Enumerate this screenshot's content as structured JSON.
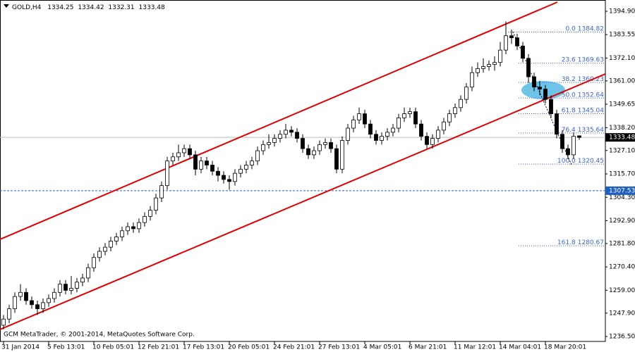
{
  "chart_data": {
    "type": "candlestick",
    "symbol": "GOLD,H4",
    "categories": [
      "31 Jan 2014",
      null,
      null,
      null,
      null,
      null,
      null,
      null,
      "5 Feb 13:01",
      null,
      null,
      null,
      null,
      null,
      null,
      null,
      "10 Feb 05:01",
      null,
      null,
      null,
      null,
      null,
      null,
      null,
      "12 Feb 21:01",
      null,
      null,
      null,
      null,
      null,
      null,
      null,
      "17 Feb 13:01",
      null,
      null,
      null,
      null,
      null,
      null,
      null,
      "20 Feb 05:01",
      null,
      null,
      null,
      null,
      null,
      null,
      null,
      "24 Feb 21:01",
      null,
      null,
      null,
      null,
      null,
      null,
      null,
      "27 Feb 13:01",
      null,
      null,
      null,
      null,
      null,
      null,
      null,
      "4 Mar 05:01",
      null,
      null,
      null,
      null,
      null,
      null,
      null,
      "6 Mar 21:01",
      null,
      null,
      null,
      null,
      null,
      null,
      null,
      "11 Mar 12:01",
      null,
      null,
      null,
      null,
      null,
      null,
      null,
      "14 Mar 04:01",
      null,
      null,
      null,
      null,
      null,
      null,
      null,
      "18 Mar 20:01",
      null,
      null,
      null,
      null,
      null,
      null
    ],
    "open": [
      1242,
      1245,
      1250,
      1256,
      1258,
      1254,
      1252,
      1250,
      1253,
      1255,
      1258,
      1262,
      1259,
      1260,
      1263,
      1265,
      1270,
      1275,
      1278,
      1280,
      1283,
      1285,
      1288,
      1290,
      1289,
      1292,
      1295,
      1298,
      1304,
      1310,
      1322,
      1324,
      1326,
      1328,
      1325,
      1318,
      1322,
      1320,
      1317,
      1315,
      1313,
      1312,
      1316,
      1318,
      1320,
      1322,
      1327,
      1330,
      1331,
      1333,
      1335,
      1337,
      1336,
      1333,
      1328,
      1325,
      1327,
      1330,
      1331,
      1328,
      1318,
      1332,
      1338,
      1342,
      1345,
      1340,
      1335,
      1332,
      1334,
      1336,
      1338,
      1343,
      1345,
      1346,
      1340,
      1334,
      1330,
      1333,
      1337,
      1341,
      1345,
      1348,
      1352,
      1358,
      1365,
      1367,
      1368,
      1369,
      1370,
      1376,
      1383,
      1382,
      1378,
      1372,
      1363,
      1358,
      1357,
      1352,
      1345,
      1335,
      1328,
      1325,
      1334.25
    ],
    "high": [
      1247,
      1252,
      1258,
      1262,
      1260,
      1256,
      1254,
      1255,
      1257,
      1260,
      1264,
      1264,
      1266,
      1265,
      1267,
      1272,
      1277,
      1280,
      1282,
      1285,
      1287,
      1290,
      1292,
      1292,
      1294,
      1297,
      1300,
      1306,
      1312,
      1324,
      1326,
      1330,
      1330,
      1330,
      1327,
      1324,
      1324,
      1322,
      1319,
      1317,
      1315,
      1318,
      1320,
      1322,
      1324,
      1329,
      1332,
      1335,
      1335,
      1337,
      1340,
      1339,
      1338,
      1335,
      1330,
      1329,
      1332,
      1333,
      1333,
      1330,
      1334,
      1340,
      1344,
      1348,
      1347,
      1342,
      1337,
      1336,
      1338,
      1340,
      1345,
      1348,
      1348,
      1348,
      1342,
      1336,
      1335,
      1339,
      1343,
      1347,
      1350,
      1354,
      1360,
      1368,
      1370,
      1372,
      1371,
      1373,
      1380,
      1390,
      1386,
      1384,
      1380,
      1374,
      1365,
      1361,
      1359,
      1354,
      1347,
      1337,
      1330,
      1336,
      1334.42
    ],
    "low": [
      1240,
      1243,
      1248,
      1254,
      1252,
      1250,
      1247,
      1248,
      1251,
      1253,
      1256,
      1257,
      1257,
      1258,
      1261,
      1263,
      1268,
      1273,
      1276,
      1278,
      1281,
      1283,
      1286,
      1287,
      1287,
      1290,
      1293,
      1296,
      1302,
      1308,
      1320,
      1322,
      1324,
      1323,
      1315,
      1316,
      1318,
      1315,
      1312,
      1311,
      1308,
      1310,
      1314,
      1316,
      1318,
      1320,
      1325,
      1328,
      1329,
      1331,
      1333,
      1334,
      1331,
      1326,
      1323,
      1323,
      1325,
      1328,
      1326,
      1316,
      1316,
      1330,
      1336,
      1340,
      1338,
      1333,
      1330,
      1330,
      1332,
      1334,
      1336,
      1341,
      1343,
      1338,
      1332,
      1328,
      1328,
      1331,
      1335,
      1339,
      1343,
      1346,
      1350,
      1356,
      1363,
      1365,
      1366,
      1366,
      1368,
      1374,
      1379,
      1376,
      1370,
      1360,
      1356,
      1354,
      1350,
      1343,
      1333,
      1326,
      1323,
      1323,
      1332.31
    ],
    "close": [
      1245,
      1250,
      1256,
      1258,
      1254,
      1252,
      1250,
      1253,
      1255,
      1258,
      1262,
      1259,
      1260,
      1263,
      1265,
      1270,
      1275,
      1278,
      1280,
      1283,
      1285,
      1288,
      1290,
      1289,
      1292,
      1295,
      1298,
      1304,
      1310,
      1322,
      1324,
      1326,
      1328,
      1325,
      1318,
      1322,
      1320,
      1317,
      1315,
      1313,
      1312,
      1316,
      1318,
      1320,
      1322,
      1327,
      1330,
      1331,
      1333,
      1335,
      1337,
      1336,
      1333,
      1328,
      1325,
      1327,
      1330,
      1331,
      1328,
      1318,
      1332,
      1338,
      1342,
      1345,
      1340,
      1335,
      1332,
      1334,
      1336,
      1338,
      1343,
      1345,
      1346,
      1340,
      1334,
      1330,
      1333,
      1337,
      1341,
      1345,
      1348,
      1352,
      1358,
      1365,
      1367,
      1368,
      1369,
      1370,
      1376,
      1383,
      1382,
      1378,
      1372,
      1363,
      1358,
      1357,
      1352,
      1345,
      1335,
      1328,
      1325,
      1334,
      1333.48
    ],
    "ylim": [
      1234.1,
      1400.4
    ],
    "yticks": [
      {
        "value": 1394.9,
        "label": "1394.90"
      },
      {
        "value": 1383.55,
        "label": "1383.55"
      },
      {
        "value": 1372.1,
        "label": "1372.10"
      },
      {
        "value": 1361,
        "label": "1361.00"
      },
      {
        "value": 1349.65,
        "label": "1349.65"
      },
      {
        "value": 1338.2,
        "label": "1338.20"
      },
      {
        "value": 1327.1,
        "label": "1327.10"
      },
      {
        "value": 1315.7,
        "label": "1315.70"
      },
      {
        "value": 1304.3,
        "label": "1304.30"
      },
      {
        "value": 1292.9,
        "label": "1292.90"
      },
      {
        "value": 1281.8,
        "label": "1281.80"
      },
      {
        "value": 1270.4,
        "label": "1270.40"
      },
      {
        "value": 1259,
        "label": "1259.00"
      },
      {
        "value": 1247.9,
        "label": "1247.90"
      },
      {
        "value": 1236.5,
        "label": "1236.50"
      }
    ],
    "fib_levels": [
      {
        "level": {
          "value": 0,
          "label": "0.0"
        },
        "price": 1384.82
      },
      {
        "level": 23.6,
        "price": 1369.63
      },
      {
        "level": 38.2,
        "price": 1360.23
      },
      {
        "level": {
          "value": 50,
          "label": "50.0"
        },
        "price": 1352.64
      },
      {
        "level": 61.8,
        "price": 1345.04
      },
      {
        "level": 76.4,
        "price": 1335.64
      },
      {
        "level": {
          "value": 100,
          "label": "100.0"
        },
        "price": 1320.45
      },
      {
        "level": 161.8,
        "price": 1280.67
      }
    ],
    "hline": 1307.53,
    "current_price": 1333.48,
    "color_line": "#e00000",
    "fib_color": "#3c64d0",
    "hline_color": "#1f5fbf",
    "copyright": "GCM MetaTrader, © 2001-2014, MetaQuotes Software Corp."
  }
}
